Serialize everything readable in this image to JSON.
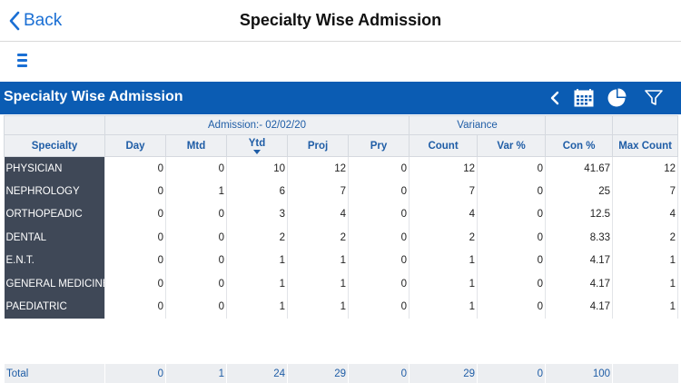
{
  "nav": {
    "back_label": "Back",
    "title": "Specialty Wise Admission"
  },
  "report": {
    "title": "Specialty Wise Admission"
  },
  "icons": {
    "back": "chevron-left-icon",
    "menu": "hamburger-menu-icon",
    "prev": "chevron-left-icon",
    "calendar": "calendar-icon",
    "chart": "pie-chart-icon",
    "filter": "filter-icon"
  },
  "colors": {
    "accent": "#1a6fd4",
    "bar": "#0b5cb3",
    "row_header": "#3f4857"
  },
  "table": {
    "groups": {
      "admission": "Admission:- 02/02/20",
      "variance": "Variance"
    },
    "columns": [
      "Specialty",
      "Day",
      "Mtd",
      "Ytd",
      "Proj",
      "Pry",
      "Count",
      "Var %",
      "Con %",
      "Max Count"
    ],
    "rows": [
      [
        "PHYSICIAN",
        "0",
        "0",
        "10",
        "12",
        "0",
        "12",
        "0",
        "41.67",
        "12"
      ],
      [
        "NEPHROLOGY",
        "0",
        "1",
        "6",
        "7",
        "0",
        "7",
        "0",
        "25",
        "7"
      ],
      [
        "ORTHOPEADIC",
        "0",
        "0",
        "3",
        "4",
        "0",
        "4",
        "0",
        "12.5",
        "4"
      ],
      [
        "DENTAL",
        "0",
        "0",
        "2",
        "2",
        "0",
        "2",
        "0",
        "8.33",
        "2"
      ],
      [
        "E.N.T.",
        "0",
        "0",
        "1",
        "1",
        "0",
        "1",
        "0",
        "4.17",
        "1"
      ],
      [
        "GENERAL MEDICINE",
        "0",
        "0",
        "1",
        "1",
        "0",
        "1",
        "0",
        "4.17",
        "1"
      ],
      [
        "PAEDIATRIC",
        "0",
        "0",
        "1",
        "1",
        "0",
        "1",
        "0",
        "4.17",
        "1"
      ]
    ],
    "total": [
      "Total",
      "0",
      "1",
      "24",
      "29",
      "0",
      "29",
      "0",
      "100",
      ""
    ]
  }
}
